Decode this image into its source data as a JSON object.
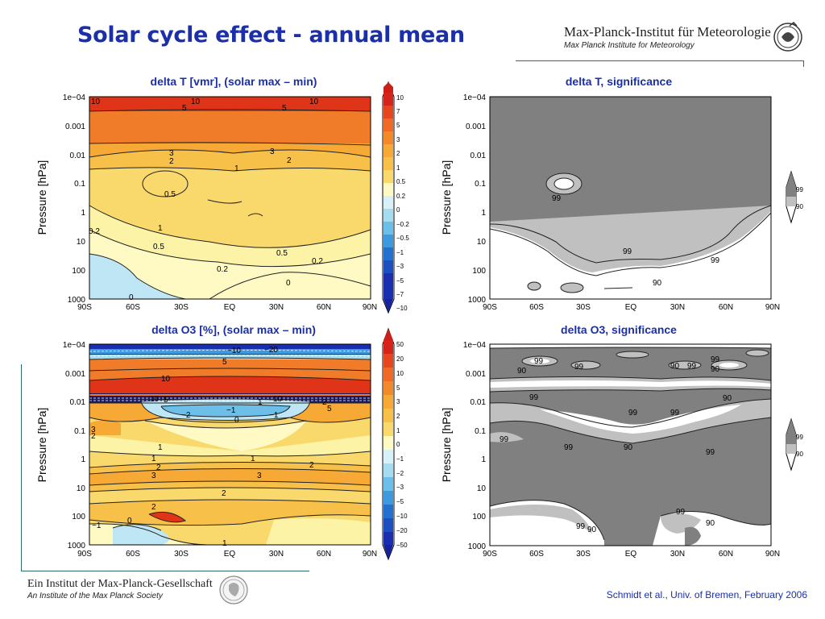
{
  "header": {
    "title": "Solar cycle effect - annual mean",
    "institute": "Max-Planck-Institut für Meteorologie",
    "institute_sub": "Max Planck Institute for Meteorology"
  },
  "footer": {
    "name": "Ein Institut der Max-Planck-Gesellschaft",
    "sub": "An Institute of the Max Planck Society",
    "credit": "Schmidt et al., Univ. of Bremen, February 2006"
  },
  "colors": {
    "title_blue": "#1a2fa8",
    "line_teal": "#2c6c66",
    "signif_dark": "#808080",
    "signif_light": "#c0c0c0"
  },
  "chart_data": [
    {
      "type": "heatmap",
      "title": "delta T [vmr], (solar max – min)",
      "xlabel": "",
      "ylabel": "Pressure  [hPa]",
      "x_ticks": [
        "90S",
        "60S",
        "30S",
        "EQ",
        "30N",
        "60N",
        "90N"
      ],
      "y_ticks": [
        "1e−04",
        "0.001",
        "0.01",
        "0.1",
        "1",
        "10",
        "100",
        "1000"
      ],
      "y_scale": "log",
      "contour_labels": [
        "10",
        "10",
        "10",
        "5",
        "5",
        "3",
        "3",
        "2",
        "2",
        "1",
        "1",
        "0.5",
        "0.5",
        "0.5",
        "0.2",
        "0.2",
        "0.2",
        "0",
        "0"
      ],
      "colorbar": [
        "10",
        "7",
        "5",
        "3",
        "2",
        "1",
        "0.5",
        "0.2",
        "0",
        "−0.2",
        "−0.5",
        "−1",
        "−3",
        "−5",
        "−7",
        "−10"
      ]
    },
    {
      "type": "heatmap",
      "title": "delta T, significance",
      "ylabel": "Pressure  [hPa]",
      "x_ticks": [
        "90S",
        "60S",
        "30S",
        "EQ",
        "30N",
        "60N",
        "90N"
      ],
      "y_ticks": [
        "1e−04",
        "0.001",
        "0.01",
        "0.1",
        "1",
        "10",
        "100",
        "1000"
      ],
      "y_scale": "log",
      "contour_labels": [
        "99",
        "99",
        "99",
        "90"
      ],
      "legend": [
        "99",
        "90"
      ]
    },
    {
      "type": "heatmap",
      "title": "delta O3 [%], (solar max – min)",
      "ylabel": "Pressure  [hPa]",
      "x_ticks": [
        "90S",
        "60S",
        "30S",
        "EQ",
        "30N",
        "60N",
        "90N"
      ],
      "y_ticks": [
        "1e−04",
        "0.001",
        "0.01",
        "0.1",
        "1",
        "10",
        "100",
        "1000"
      ],
      "y_scale": "log",
      "contour_labels": [
        "−20",
        "−10",
        "5",
        "10",
        "10",
        "10",
        "5",
        "0",
        "−1",
        "1",
        "−2",
        "−1",
        "2",
        "5",
        "3",
        "2",
        "1",
        "1",
        "1",
        "2",
        "3",
        "3",
        "2",
        "2",
        "2",
        "0",
        "−1",
        "1"
      ],
      "colorbar": [
        "50",
        "20",
        "10",
        "5",
        "3",
        "2",
        "1",
        "0",
        "−1",
        "−2",
        "−3",
        "−5",
        "−10",
        "−20",
        "−50"
      ]
    },
    {
      "type": "heatmap",
      "title": "delta O3, significance",
      "ylabel": "Pressure  [hPa]",
      "x_ticks": [
        "90S",
        "60S",
        "30S",
        "EQ",
        "30N",
        "60N",
        "90N"
      ],
      "y_ticks": [
        "1e−04",
        "0.001",
        "0.01",
        "0.1",
        "1",
        "10",
        "100",
        "1000"
      ],
      "y_scale": "log",
      "contour_labels": [
        "99",
        "90",
        "99",
        "90",
        "99",
        "90",
        "99",
        "90",
        "99",
        "99",
        "99",
        "99",
        "90",
        "99",
        "99",
        "90",
        "99",
        "99",
        "90"
      ],
      "legend": [
        "99",
        "90"
      ]
    }
  ]
}
